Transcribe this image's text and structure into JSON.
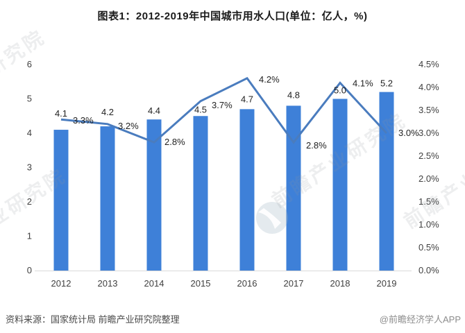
{
  "title": "图表1：2012-2019年中国城市用水人口(单位：亿人，%)",
  "watermark": {
    "brand_text": "前瞻产业研究院"
  },
  "footer": {
    "source": "资料来源：国家统计局 前瞻产业研究院整理",
    "credit": "@前瞻经济学人APP"
  },
  "chart_data": {
    "type": "bar+line",
    "title": "图表1：2012-2019年中国城市用水人口(单位：亿人，%)",
    "categories": [
      "2012",
      "2013",
      "2014",
      "2015",
      "2016",
      "2017",
      "2018",
      "2019"
    ],
    "series": [
      {
        "type": "bar",
        "unit": "亿人",
        "axis": "left",
        "values": [
          4.1,
          4.2,
          4.4,
          4.5,
          4.7,
          4.8,
          5.0,
          5.2
        ],
        "labels": [
          "4.1",
          "4.2",
          "4.4",
          "4.5",
          "4.7",
          "4.8",
          "5.0",
          "5.2"
        ],
        "color": "#3E80D8"
      },
      {
        "type": "line",
        "unit": "%",
        "axis": "right",
        "values": [
          3.3,
          3.2,
          2.8,
          3.7,
          4.2,
          2.8,
          4.1,
          3.0
        ],
        "labels": [
          "3.3%",
          "3.2%",
          "2.8%",
          "3.7%",
          "4.2%",
          "2.8%",
          "4.1%",
          "3.0%"
        ],
        "color": "#4A7CBE"
      }
    ],
    "left_axis": {
      "min": 0,
      "max": 6,
      "step": 1,
      "ticks": [
        "0",
        "1",
        "2",
        "3",
        "4",
        "5",
        "6"
      ]
    },
    "right_axis": {
      "min": 0,
      "max": 4.5,
      "step": 0.5,
      "ticks": [
        "0.0%",
        "0.5%",
        "1.0%",
        "1.5%",
        "2.0%",
        "2.5%",
        "3.0%",
        "3.5%",
        "4.0%",
        "4.5%"
      ]
    },
    "grid": false,
    "legend": "none",
    "colors": {
      "axis_line": "#D9D9D9",
      "watermark": "#8F969E"
    }
  }
}
